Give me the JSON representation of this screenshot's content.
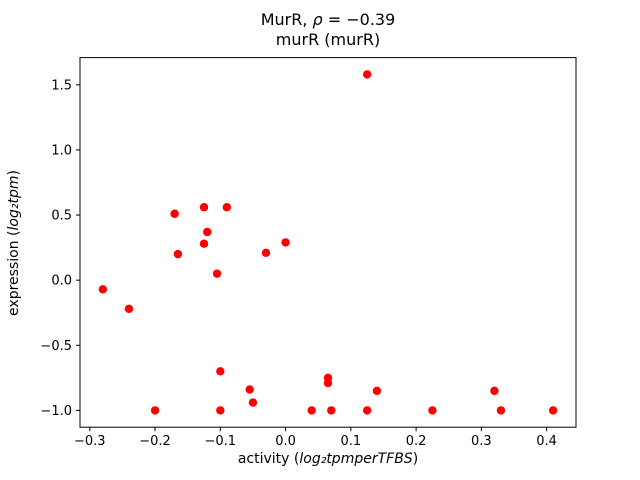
{
  "title": {
    "line1_prefix": "MurR, ",
    "line1_rho": "ρ",
    "line1_suffix": " = −0.39",
    "line2": "murR (murR)"
  },
  "axes": {
    "x_label_prefix": "activity (",
    "x_label_math": "log₂tpmperTFBS",
    "x_label_suffix": ")",
    "y_label_prefix": "expression (",
    "y_label_math": "log₂tpm",
    "y_label_suffix": ")"
  },
  "chart_data": {
    "type": "scatter",
    "title": "MurR, ρ = −0.39",
    "subtitle": "murR (murR)",
    "xlabel": "activity (log₂tpmperTFBS)",
    "ylabel": "expression (log₂tpm)",
    "marker_color": "#ff0000",
    "spine_color": "#000000",
    "xlim": [
      -0.315,
      0.445
    ],
    "ylim": [
      -1.129,
      1.709
    ],
    "xticks": [
      -0.3,
      -0.2,
      -0.1,
      0.0,
      0.1,
      0.2,
      0.3,
      0.4
    ],
    "xtick_labels": [
      "−0.3",
      "−0.2",
      "−0.1",
      "0.0",
      "0.1",
      "0.2",
      "0.3",
      "0.4"
    ],
    "yticks": [
      -1.0,
      -0.5,
      0.0,
      0.5,
      1.0,
      1.5
    ],
    "ytick_labels": [
      "−1.0",
      "−0.5",
      "0.0",
      "0.5",
      "1.0",
      "1.5"
    ],
    "x": [
      -0.28,
      -0.24,
      -0.2,
      -0.17,
      -0.165,
      -0.125,
      -0.125,
      -0.12,
      -0.105,
      -0.1,
      -0.1,
      -0.09,
      -0.055,
      -0.05,
      -0.03,
      0.0,
      0.04,
      0.065,
      0.065,
      0.07,
      0.125,
      0.125,
      0.14,
      0.225,
      0.32,
      0.33,
      0.41
    ],
    "y": [
      -0.07,
      -0.22,
      -1.0,
      0.51,
      0.2,
      0.56,
      0.28,
      0.37,
      0.05,
      -0.7,
      -1.0,
      0.56,
      -0.84,
      -0.94,
      0.21,
      0.29,
      -1.0,
      -0.75,
      -0.79,
      -1.0,
      1.58,
      -1.0,
      -0.85,
      -1.0,
      -0.85,
      -1.0,
      -1.0
    ]
  }
}
